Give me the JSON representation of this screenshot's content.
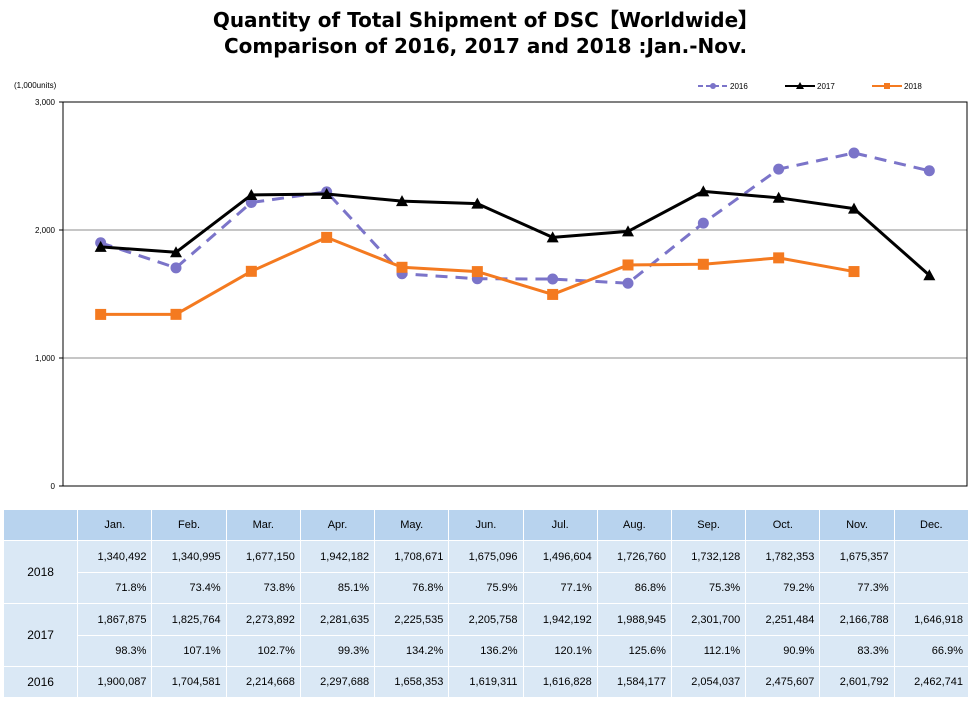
{
  "title_line1": "Quantity of Total Shipment of DSC【Worldwide】",
  "title_line2": "Comparison of 2016, 2017 and 2018 :Jan.-Nov.",
  "unit_label": "(1,000units)",
  "colors": {
    "s2016": "#7b74c9",
    "s2017": "#000000",
    "s2018": "#f47a20",
    "header_bg": "#b8d3ee",
    "row_bg": "#dae8f5"
  },
  "chart_data": {
    "type": "line",
    "title": "Quantity of Total Shipment of DSC【Worldwide】 Comparison of 2016, 2017 and 2018 :Jan.-Nov.",
    "ylabel": "(1,000units)",
    "ylim": [
      0,
      3000
    ],
    "yticks": [
      0,
      1000,
      2000,
      3000
    ],
    "ytick_labels": [
      "0",
      "1,000",
      "2,000",
      "3,000"
    ],
    "grid": true,
    "legend_position": "top-right",
    "categories": [
      "Jan.",
      "Feb.",
      "Mar.",
      "Apr.",
      "May.",
      "Jun.",
      "Jul.",
      "Aug.",
      "Sep.",
      "Oct.",
      "Nov.",
      "Dec."
    ],
    "series": [
      {
        "name": "2016",
        "style": "dashed",
        "marker": "circle",
        "color": "#7b74c9",
        "values": [
          1900.087,
          1704.581,
          2214.668,
          2297.688,
          1658.353,
          1619.311,
          1616.828,
          1584.177,
          2054.037,
          2475.607,
          2601.792,
          2462.741
        ]
      },
      {
        "name": "2017",
        "style": "solid",
        "marker": "triangle",
        "color": "#000000",
        "values": [
          1867.875,
          1825.764,
          2273.892,
          2281.635,
          2225.535,
          2205.758,
          1942.192,
          1988.945,
          2301.7,
          2251.484,
          2166.788,
          1646.918
        ]
      },
      {
        "name": "2018",
        "style": "solid",
        "marker": "square",
        "color": "#f47a20",
        "values": [
          1340.492,
          1340.995,
          1677.15,
          1942.182,
          1708.671,
          1675.096,
          1496.604,
          1726.76,
          1732.128,
          1782.353,
          1675.357,
          null
        ]
      }
    ]
  },
  "table": {
    "months": [
      "Jan.",
      "Feb.",
      "Mar.",
      "Apr.",
      "May.",
      "Jun.",
      "Jul.",
      "Aug.",
      "Sep.",
      "Oct.",
      "Nov.",
      "Dec."
    ],
    "rows": [
      {
        "year": "2018",
        "values": [
          "1,340,492",
          "1,340,995",
          "1,677,150",
          "1,942,182",
          "1,708,671",
          "1,675,096",
          "1,496,604",
          "1,726,760",
          "1,732,128",
          "1,782,353",
          "1,675,357",
          ""
        ],
        "ratios": [
          "71.8%",
          "73.4%",
          "73.8%",
          "85.1%",
          "76.8%",
          "75.9%",
          "77.1%",
          "86.8%",
          "75.3%",
          "79.2%",
          "77.3%",
          ""
        ]
      },
      {
        "year": "2017",
        "values": [
          "1,867,875",
          "1,825,764",
          "2,273,892",
          "2,281,635",
          "2,225,535",
          "2,205,758",
          "1,942,192",
          "1,988,945",
          "2,301,700",
          "2,251,484",
          "2,166,788",
          "1,646,918"
        ],
        "ratios": [
          "98.3%",
          "107.1%",
          "102.7%",
          "99.3%",
          "134.2%",
          "136.2%",
          "120.1%",
          "125.6%",
          "112.1%",
          "90.9%",
          "83.3%",
          "66.9%"
        ]
      },
      {
        "year": "2016",
        "values": [
          "1,900,087",
          "1,704,581",
          "2,214,668",
          "2,297,688",
          "1,658,353",
          "1,619,311",
          "1,616,828",
          "1,584,177",
          "2,054,037",
          "2,475,607",
          "2,601,792",
          "2,462,741"
        ]
      }
    ]
  }
}
